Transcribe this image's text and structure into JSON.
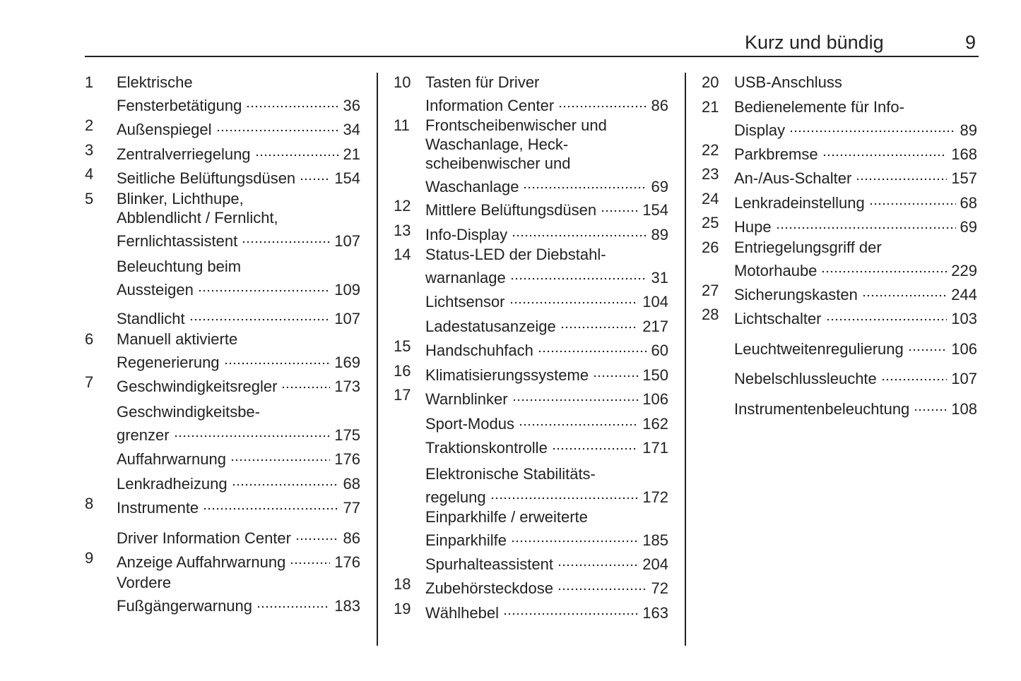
{
  "header": {
    "title": "Kurz und bündig",
    "page_number": "9"
  },
  "columns": [
    {
      "entries": [
        {
          "num": "1",
          "lines": [
            "Elektrische",
            "Fensterbetätigung"
          ],
          "page": "36"
        },
        {
          "num": "2",
          "lines": [
            "Außenspiegel"
          ],
          "page": "34"
        },
        {
          "num": "3",
          "lines": [
            "Zentralverriegelung"
          ],
          "page": "21"
        },
        {
          "num": "4",
          "lines": [
            "Seitliche Belüftungsdüsen"
          ],
          "page": "154"
        },
        {
          "num": "5",
          "lines": [
            "Blinker, Lichthupe,",
            "Abblendlicht / Fernlicht,",
            "Fernlichtassistent"
          ],
          "page": "107"
        },
        {
          "num": "",
          "lines": [
            "Beleuchtung beim",
            "Aussteigen"
          ],
          "page": "109"
        },
        {
          "num": "",
          "lines": [
            "Standlicht"
          ],
          "page": "107"
        },
        {
          "num": "6",
          "lines": [
            "Manuell aktivierte",
            "Regenerierung"
          ],
          "page": "169"
        },
        {
          "num": "7",
          "lines": [
            "Geschwindigkeitsregler"
          ],
          "page": "173"
        },
        {
          "num": "",
          "lines": [
            "Geschwindigkeitsbe-",
            "grenzer"
          ],
          "page": "175"
        },
        {
          "num": "",
          "lines": [
            "Auffahrwarnung"
          ],
          "page": "176"
        },
        {
          "num": "",
          "lines": [
            "Lenkradheizung"
          ],
          "page": "68"
        },
        {
          "num": "8",
          "lines": [
            "Instrumente"
          ],
          "page": "77"
        },
        {
          "num": "",
          "lines": [
            "Driver Information Center"
          ],
          "page": "86"
        },
        {
          "num": "9",
          "lines": [
            "Anzeige Auffahrwarnung"
          ],
          "page": "176"
        },
        {
          "num": "",
          "lines": [
            "Vordere",
            "Fußgängerwarnung"
          ],
          "page": "183"
        }
      ]
    },
    {
      "entries": [
        {
          "num": "10",
          "lines": [
            "Tasten für Driver",
            "Information Center"
          ],
          "page": "86"
        },
        {
          "num": "11",
          "lines": [
            "Frontscheibenwischer und",
            "Waschanlage, Heck-",
            "scheibenwischer und",
            "Waschanlage"
          ],
          "page": "69"
        },
        {
          "num": "12",
          "lines": [
            "Mittlere Belüftungsdüsen"
          ],
          "page": "154"
        },
        {
          "num": "13",
          "lines": [
            "Info-Display"
          ],
          "page": "89"
        },
        {
          "num": "14",
          "lines": [
            "Status-LED der Diebstahl-",
            "warnanlage"
          ],
          "page": "31"
        },
        {
          "num": "",
          "lines": [
            "Lichtsensor"
          ],
          "page": "104"
        },
        {
          "num": "",
          "lines": [
            "Ladestatusanzeige"
          ],
          "page": "217"
        },
        {
          "num": "15",
          "lines": [
            "Handschuhfach"
          ],
          "page": "60"
        },
        {
          "num": "16",
          "lines": [
            "Klimatisierungssysteme"
          ],
          "page": "150"
        },
        {
          "num": "17",
          "lines": [
            "Warnblinker"
          ],
          "page": "106"
        },
        {
          "num": "",
          "lines": [
            "Sport-Modus"
          ],
          "page": "162"
        },
        {
          "num": "",
          "lines": [
            "Traktionskontrolle"
          ],
          "page": "171"
        },
        {
          "num": "",
          "lines": [
            "Elektronische Stabilitäts-",
            "regelung"
          ],
          "page": "172"
        },
        {
          "num": "",
          "lines": [
            "Einparkhilfe / erweiterte",
            "Einparkhilfe"
          ],
          "page": "185"
        },
        {
          "num": "",
          "lines": [
            "Spurhalteassistent"
          ],
          "page": "204"
        },
        {
          "num": "18",
          "lines": [
            "Zubehörsteckdose"
          ],
          "page": "72"
        },
        {
          "num": "19",
          "lines": [
            "Wählhebel"
          ],
          "page": "163"
        }
      ]
    },
    {
      "entries": [
        {
          "num": "20",
          "lines": [
            "USB-Anschluss"
          ],
          "page": ""
        },
        {
          "num": "21",
          "lines": [
            "Bedienelemente für Info-",
            "Display"
          ],
          "page": "89"
        },
        {
          "num": "22",
          "lines": [
            "Parkbremse"
          ],
          "page": "168"
        },
        {
          "num": "23",
          "lines": [
            "An-/Aus-Schalter"
          ],
          "page": "157"
        },
        {
          "num": "24",
          "lines": [
            "Lenkradeinstellung"
          ],
          "page": "68"
        },
        {
          "num": "25",
          "lines": [
            "Hupe"
          ],
          "page": "69"
        },
        {
          "num": "26",
          "lines": [
            "Entriegelungsgriff der",
            "Motorhaube"
          ],
          "page": "229"
        },
        {
          "num": "27",
          "lines": [
            "Sicherungskasten"
          ],
          "page": "244"
        },
        {
          "num": "28",
          "lines": [
            "Lichtschalter"
          ],
          "page": "103"
        },
        {
          "num": "",
          "lines": [
            "Leuchtweitenregulierung"
          ],
          "page": "106"
        },
        {
          "num": "",
          "lines": [
            "Nebelschlussleuchte"
          ],
          "page": "107"
        },
        {
          "num": "",
          "lines": [
            "Instrumentenbeleuchtung"
          ],
          "page": "108"
        }
      ]
    }
  ]
}
